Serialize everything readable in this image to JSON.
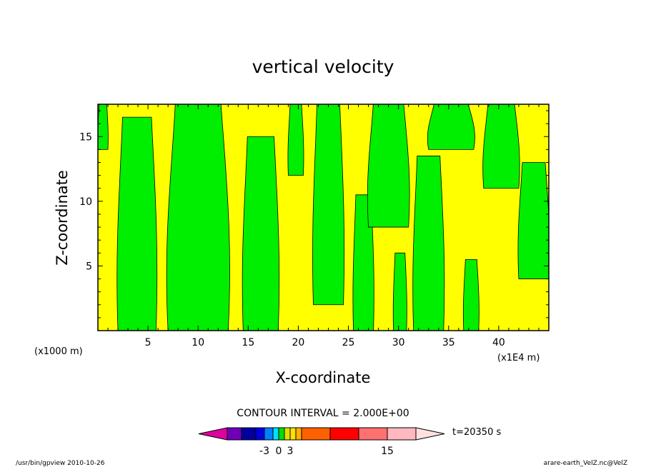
{
  "chart_data": {
    "type": "heatmap",
    "title": "vertical velocity",
    "xlabel": "X-coordinate",
    "ylabel": "Z-coordinate",
    "x_units": "(x1E4 m)",
    "y_units": "(x1000 m)",
    "xlim": [
      0,
      45
    ],
    "ylim": [
      0,
      17.5
    ],
    "x_ticks": [
      5,
      10,
      15,
      20,
      25,
      30,
      35,
      40
    ],
    "y_ticks": [
      5,
      10,
      15
    ],
    "contour_interval": "CONTOUR INTERVAL = 2.000E+00",
    "time_label": "t=20350 s",
    "colorbar": {
      "colors": [
        "#e000a0",
        "#7000b8",
        "#0000a0",
        "#0000e0",
        "#0080ff",
        "#00e0ff",
        "#00e000",
        "#e0e000",
        "#ffe000",
        "#ffb000",
        "#ff6000",
        "#ff0000",
        "#ff7070",
        "#ffb8c0",
        "#ffe0e0"
      ],
      "tick_labels": [
        "-3",
        "0",
        "3",
        "15"
      ],
      "tick_values": [
        -3,
        0,
        3,
        15
      ]
    },
    "field_colors": {
      "positive": "#ffff00",
      "negative": "#00ee00",
      "contour": "#000000"
    },
    "green_columns": [
      {
        "x0": 0,
        "x1": 1,
        "top": 17.5,
        "bottom": 14
      },
      {
        "x0": 2,
        "x1": 5.8,
        "top": 16.5,
        "bottom": 0
      },
      {
        "x0": 7,
        "x1": 13,
        "top": 17.5,
        "bottom": 0
      },
      {
        "x0": 14.5,
        "x1": 18,
        "top": 15,
        "bottom": 0
      },
      {
        "x0": 19,
        "x1": 20.5,
        "top": 17.5,
        "bottom": 12
      },
      {
        "x0": 21.5,
        "x1": 24.5,
        "top": 17.5,
        "bottom": 2
      },
      {
        "x0": 25.5,
        "x1": 27.5,
        "top": 10.5,
        "bottom": 0
      },
      {
        "x0": 27,
        "x1": 31,
        "top": 17.5,
        "bottom": 8
      },
      {
        "x0": 29.5,
        "x1": 30.8,
        "top": 6,
        "bottom": 0
      },
      {
        "x0": 31.5,
        "x1": 34.5,
        "top": 13.5,
        "bottom": 0
      },
      {
        "x0": 33,
        "x1": 37.5,
        "top": 17.5,
        "bottom": 14
      },
      {
        "x0": 36.5,
        "x1": 38,
        "top": 5.5,
        "bottom": 0
      },
      {
        "x0": 38.5,
        "x1": 42,
        "top": 17.5,
        "bottom": 11
      },
      {
        "x0": 42,
        "x1": 45,
        "top": 13,
        "bottom": 4
      }
    ]
  },
  "footer": {
    "left": "/usr/bin/gpview   2010-10-26",
    "right": "arare-earth_VelZ.nc@VelZ"
  }
}
